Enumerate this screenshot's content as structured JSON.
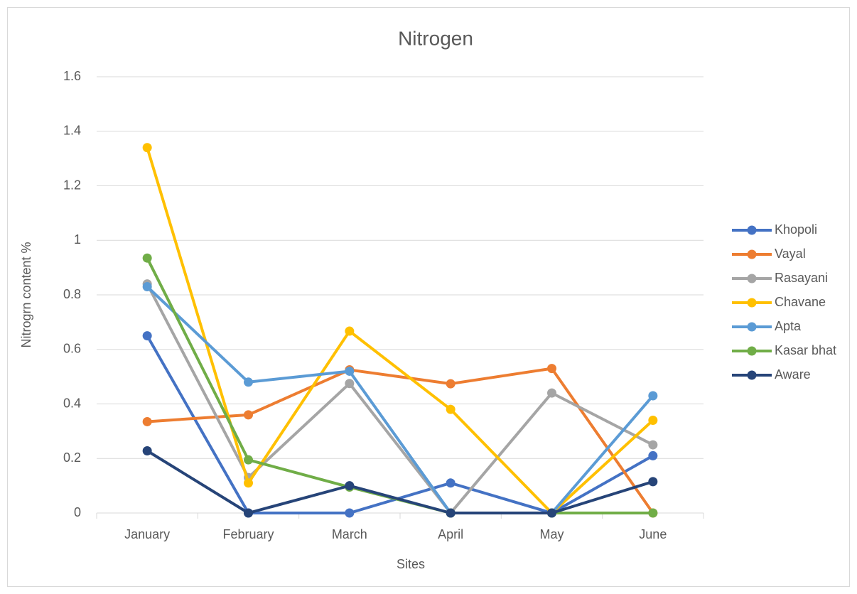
{
  "chart_data": {
    "type": "line",
    "title": "Nitrogen",
    "xlabel": "Sites",
    "ylabel": "Nitrogrn content %",
    "categories": [
      "January",
      "February",
      "March",
      "April",
      "May",
      "June"
    ],
    "series": [
      {
        "name": "Khopoli",
        "color": "#4472c4",
        "values": [
          0.65,
          0,
          0,
          0.11,
          0,
          0.21
        ]
      },
      {
        "name": "Vayal",
        "color": "#ed7d31",
        "values": [
          0.335,
          0.36,
          0.525,
          0.474,
          0.53,
          0
        ]
      },
      {
        "name": "Rasayani",
        "color": "#a5a5a5",
        "values": [
          0.84,
          0.13,
          0.475,
          0,
          0.44,
          0.25
        ]
      },
      {
        "name": "Chavane",
        "color": "#ffc000",
        "values": [
          1.34,
          0.11,
          0.667,
          0.38,
          0,
          0.34
        ]
      },
      {
        "name": "Apta",
        "color": "#5b9bd5",
        "values": [
          0.83,
          0.48,
          0.52,
          0,
          0,
          0.43
        ]
      },
      {
        "name": "Kasar bhat",
        "color": "#70ad47",
        "values": [
          0.935,
          0.195,
          0.095,
          0,
          0,
          0
        ]
      },
      {
        "name": "Aware",
        "color": "#264478",
        "values": [
          0.228,
          0,
          0.1,
          0,
          0,
          0.115
        ]
      }
    ],
    "ylim": [
      0,
      1.6
    ],
    "yticks": [
      0,
      0.2,
      0.4,
      0.6,
      0.8,
      1,
      1.2,
      1.4,
      1.6
    ],
    "grid": true,
    "legend": "right"
  }
}
